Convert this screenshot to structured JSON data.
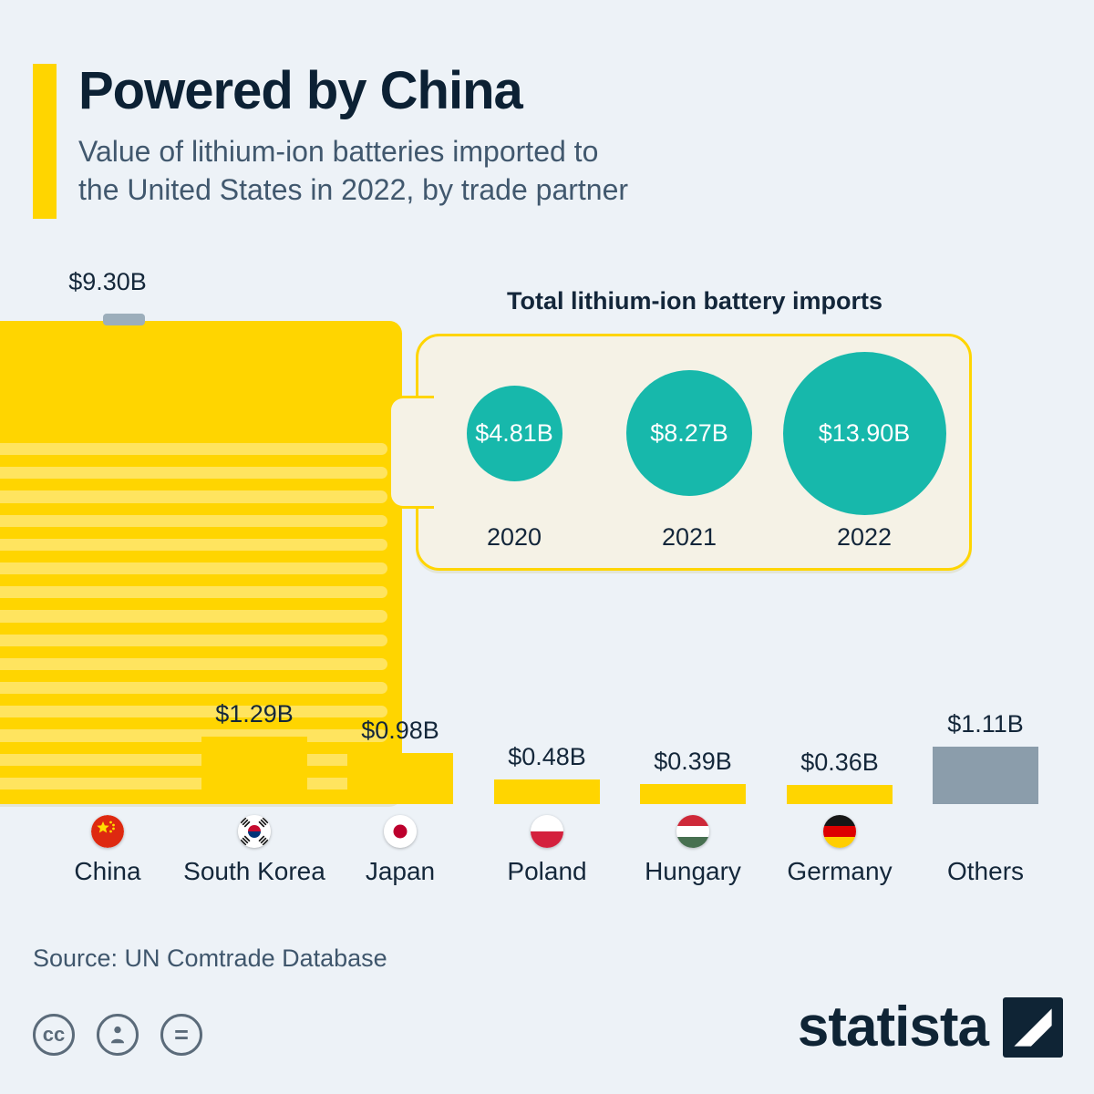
{
  "header": {
    "title": "Powered by China",
    "subtitle_line1": "Value of lithium-ion batteries imported to",
    "subtitle_line2": "the United States in 2022, by trade partner"
  },
  "chart_data": [
    {
      "type": "bar",
      "title": "Value of lithium-ion batteries imported to the United States in 2022, by trade partner",
      "unit": "USD billions",
      "categories": [
        "China",
        "South Korea",
        "Japan",
        "Poland",
        "Hungary",
        "Germany",
        "Others"
      ],
      "values": [
        9.3,
        1.29,
        0.98,
        0.48,
        0.39,
        0.36,
        1.11
      ],
      "labels": [
        "$9.30B",
        "$1.29B",
        "$0.98B",
        "$0.48B",
        "$0.39B",
        "$0.36B",
        "$1.11B"
      ],
      "colors": [
        "#ffd500",
        "#ffd500",
        "#ffd500",
        "#ffd500",
        "#ffd500",
        "#ffd500",
        "#8b9dab"
      ],
      "flags": [
        "china",
        "south-korea",
        "japan",
        "poland",
        "hungary",
        "germany",
        null
      ]
    },
    {
      "type": "bubble",
      "title": "Total lithium-ion battery imports",
      "unit": "USD billions",
      "categories": [
        "2020",
        "2021",
        "2022"
      ],
      "values": [
        4.81,
        8.27,
        13.9
      ],
      "labels": [
        "$4.81B",
        "$8.27B",
        "$13.90B"
      ],
      "bubble_color": "#17b8ab"
    }
  ],
  "footer": {
    "source": "Source: UN Comtrade Database",
    "license_icons": [
      "creative-commons-icon",
      "attribution-icon",
      "equals-icon"
    ],
    "cc_label": "cc",
    "equals_label": "=",
    "brand": "statista"
  },
  "theme": {
    "background": "#edf2f7",
    "navy": "#0f2435",
    "yellow": "#ffd500",
    "stripe_yellow": "#ffe45f",
    "teal": "#17b8ab",
    "panel_cream": "#f5f2e6",
    "others_gray": "#8b9dab"
  }
}
